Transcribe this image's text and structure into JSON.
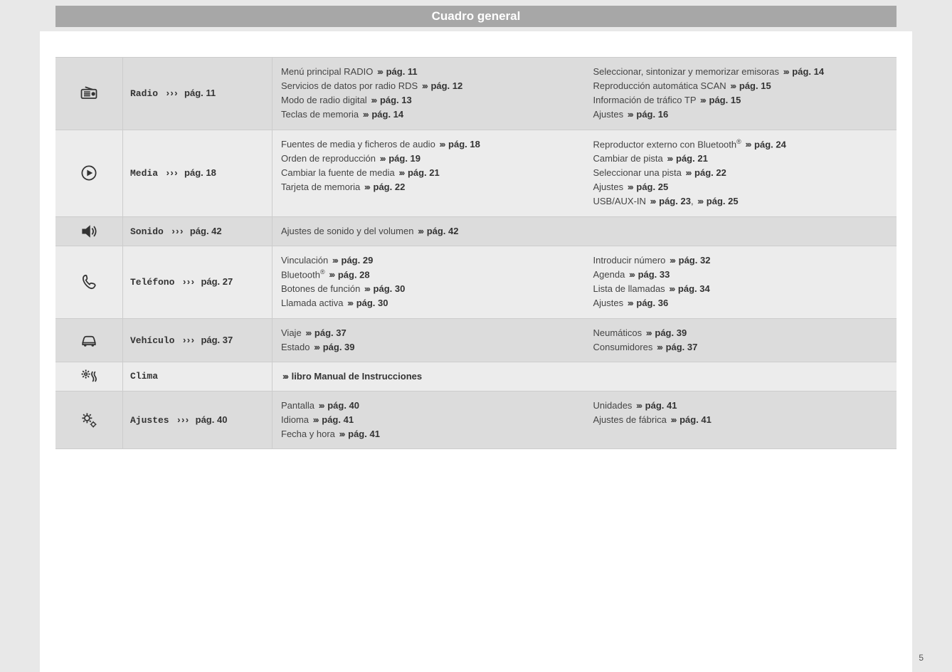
{
  "header": {
    "title": "Cuadro general"
  },
  "page_number": "5",
  "chevron": "›››",
  "colors": {
    "page_bg": "#e8e8e8",
    "frame_bg": "#ffffff",
    "header_bg": "#a7a7a7",
    "header_fg": "#ffffff",
    "row_bg": "#dcdcdc",
    "row_alt_bg": "#ececec",
    "border": "#cccccc",
    "text": "#444444"
  },
  "rows": [
    {
      "icon": "radio",
      "title": "Radio",
      "title_page": "pág. 11",
      "col1": [
        {
          "text": "Menú principal RADIO",
          "page": "pág. 11"
        },
        {
          "text": "Servicios de datos por radio RDS",
          "page": "pág. 12"
        },
        {
          "text": "Modo de radio digital",
          "page": "pág. 13"
        },
        {
          "text": "Teclas de memoria",
          "page": "pág. 14"
        }
      ],
      "col2": [
        {
          "text": "Seleccionar, sintonizar y memorizar emisoras",
          "page": "pág. 14"
        },
        {
          "text": "Reproducción automática SCAN",
          "page": "pág. 15"
        },
        {
          "text": "Información de tráfico TP",
          "page": "pág. 15"
        },
        {
          "text": "Ajustes",
          "page": "pág. 16"
        }
      ]
    },
    {
      "icon": "media",
      "title": "Media",
      "title_page": "pág. 18",
      "col1": [
        {
          "text": "Fuentes de media y ficheros de audio",
          "page": "pág. 18"
        },
        {
          "text": "Orden de reproducción",
          "page": "pág. 19"
        },
        {
          "text": "Cambiar la fuente de media",
          "page": "pág. 21"
        },
        {
          "text": "Tarjeta de memoria",
          "page": "pág. 22"
        }
      ],
      "col2": [
        {
          "text": "Reproductor externo con Bluetooth",
          "sup": "®",
          "page": "pág. 24"
        },
        {
          "text": "Cambiar de pista",
          "page": "pág. 21"
        },
        {
          "text": "Seleccionar una pista",
          "page": "pág. 22"
        },
        {
          "text": "Ajustes",
          "page": "pág. 25"
        },
        {
          "text": "USB/AUX-IN",
          "page": "pág. 23",
          "page2": "pág. 25"
        }
      ]
    },
    {
      "icon": "sound",
      "title": "Sonido",
      "title_page": "pág. 42",
      "col1": [
        {
          "text": "Ajustes de sonido y del volumen",
          "page": "pág. 42"
        }
      ],
      "col2": []
    },
    {
      "icon": "phone",
      "title": "Teléfono",
      "title_page": "pág. 27",
      "col1": [
        {
          "text": "Vinculación",
          "page": "pág. 29"
        },
        {
          "text": "Bluetooth",
          "sup": "®",
          "page": "pág. 28"
        },
        {
          "text": "Botones de función",
          "page": "pág. 30"
        },
        {
          "text": "Llamada activa",
          "page": "pág. 30"
        }
      ],
      "col2": [
        {
          "text": "Introducir número",
          "page": "pág. 32"
        },
        {
          "text": "Agenda",
          "page": "pág. 33"
        },
        {
          "text": "Lista de llamadas",
          "page": "pág. 34"
        },
        {
          "text": "Ajustes",
          "page": "pág. 36"
        }
      ]
    },
    {
      "icon": "car",
      "title": "Vehículo",
      "title_page": "pág. 37",
      "col1": [
        {
          "text": "Viaje",
          "page": "pág. 37"
        },
        {
          "text": "Estado",
          "page": "pág. 39"
        }
      ],
      "col2": [
        {
          "text": "Neumáticos",
          "page": "pág. 39"
        },
        {
          "text": "Consumidores",
          "page": "pág. 37"
        }
      ]
    },
    {
      "icon": "climate",
      "title": "Clima",
      "title_page": "",
      "col_special": "libro Manual de Instrucciones",
      "col1": [],
      "col2": []
    },
    {
      "icon": "settings",
      "title": "Ajustes",
      "title_page": "pág. 40",
      "col1": [
        {
          "text": "Pantalla",
          "page": "pág. 40"
        },
        {
          "text": "Idioma",
          "page": "pág. 41"
        },
        {
          "text": "Fecha y hora",
          "page": "pág. 41"
        }
      ],
      "col2": [
        {
          "text": "Unidades",
          "page": "pág. 41"
        },
        {
          "text": "Ajustes de fábrica",
          "page": "pág. 41"
        }
      ]
    }
  ]
}
